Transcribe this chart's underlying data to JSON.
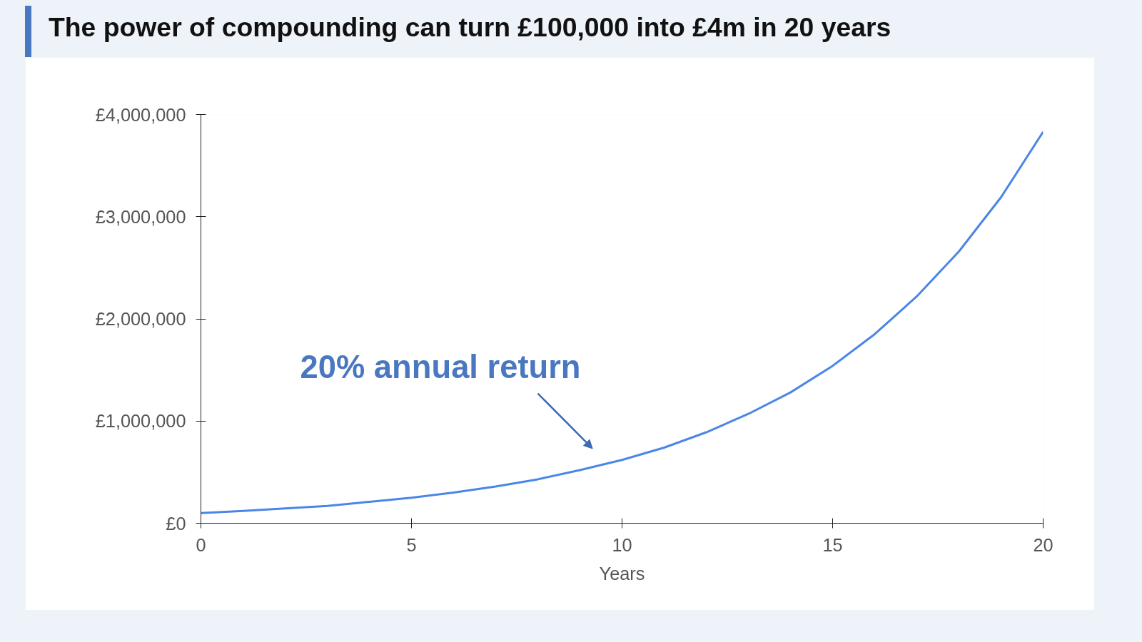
{
  "chart_data": {
    "type": "line",
    "title": "The power of compounding can turn £100,000 into £4m in 20 years",
    "xlabel": "Years",
    "x": [
      0,
      1,
      2,
      3,
      4,
      5,
      6,
      7,
      8,
      9,
      10,
      11,
      12,
      13,
      14,
      15,
      16,
      17,
      18,
      19,
      20
    ],
    "series": [
      {
        "color": "#4a86e8",
        "values": [
          100000,
          120000,
          144000,
          170000,
          210000,
          250000,
          300000,
          360000,
          430000,
          520000,
          620000,
          740000,
          890000,
          1070000,
          1280000,
          1540000,
          1850000,
          2220000,
          2660000,
          3190000,
          3830000
        ]
      }
    ],
    "xlim": [
      0,
      20
    ],
    "xticks": [
      0,
      5,
      10,
      15,
      20
    ],
    "ylim": [
      0,
      4000000
    ],
    "yticks": [
      {
        "value": 0,
        "label": "£0"
      },
      {
        "value": 1000000,
        "label": "£1,000,000"
      },
      {
        "value": 2000000,
        "label": "£2,000,000"
      },
      {
        "value": 3000000,
        "label": "£3,000,000"
      },
      {
        "value": 4000000,
        "label": "£4,000,000"
      }
    ],
    "grid": false,
    "annotations": [
      {
        "text": "20% annual return",
        "x": 9.3,
        "y": 550000
      }
    ]
  }
}
